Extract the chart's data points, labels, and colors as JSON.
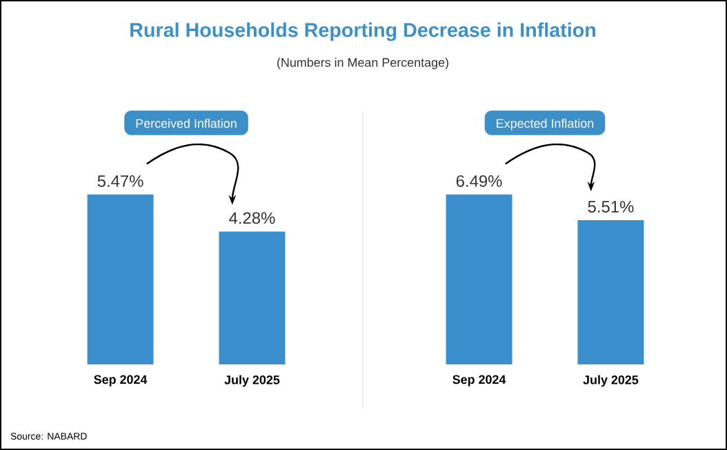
{
  "chart_data": [
    {
      "type": "bar",
      "title": "Perceived Inflation",
      "categories": [
        "Sep 2024",
        "July 2025"
      ],
      "values": [
        5.47,
        4.28
      ],
      "value_labels": [
        "5.47%",
        "4.28%"
      ],
      "color": "#3a8fcc",
      "annotations": [
        "Rural Households Reporting Decrease in Inflation",
        "(Numbers in Mean Percentage)",
        "Source: NABARD"
      ]
    },
    {
      "type": "bar",
      "title": "Expected Inflation",
      "categories": [
        "Sep 2024",
        "July 2025"
      ],
      "values": [
        6.49,
        5.51
      ],
      "value_labels": [
        "6.49%",
        "5.51%"
      ],
      "color": "#3a8fcc"
    }
  ]
}
